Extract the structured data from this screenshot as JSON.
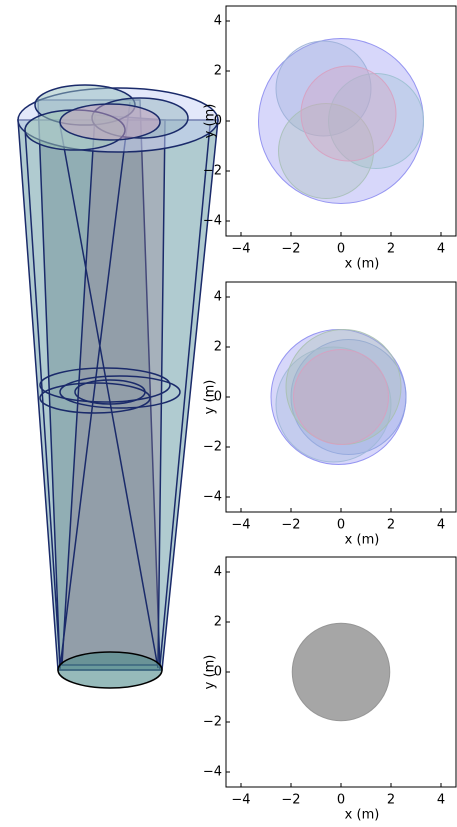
{
  "chart_data": [
    {
      "type": "scatter",
      "xlabel": "x (m)",
      "ylabel": "y (m)",
      "xlim": [
        -4.6,
        4.6
      ],
      "ylim": [
        -4.6,
        4.6
      ],
      "xticks": [
        {
          "value": -4,
          "label": "−4"
        },
        {
          "value": -2,
          "label": "−2"
        },
        0,
        2,
        4
      ],
      "yticks": [
        {
          "value": -4,
          "label": "−4"
        },
        {
          "value": -2,
          "label": "−2"
        },
        0,
        2,
        4
      ],
      "x": [
        0,
        -0.7,
        1.4,
        -0.6,
        0.3
      ],
      "y": [
        0,
        1.3,
        0,
        -1.2,
        0.3
      ],
      "r": [
        3.3,
        1.9,
        1.9,
        1.9,
        1.9
      ],
      "colors": [
        "#8c8cf0",
        "#9cb0d8",
        "#9cc0d0",
        "#a8c0b8",
        "#d8a0c0"
      ]
    },
    {
      "type": "scatter",
      "xlabel": "x (m)",
      "ylabel": "y (m)",
      "xlim": [
        -4.6,
        4.6
      ],
      "ylim": [
        -4.6,
        4.6
      ],
      "xticks": [
        {
          "value": -4,
          "label": "−4"
        },
        {
          "value": -2,
          "label": "−2"
        },
        0,
        2,
        4
      ],
      "yticks": [
        {
          "value": -4,
          "label": "−4"
        },
        {
          "value": -2,
          "label": "−2"
        },
        0,
        2,
        4
      ],
      "x": [
        -0.1,
        0.3,
        -0.3,
        0.1,
        0
      ],
      "y": [
        0,
        0,
        -0.3,
        0.4,
        0
      ],
      "r": [
        2.7,
        2.3,
        2.3,
        2.3,
        1.9
      ],
      "colors": [
        "#8c8cf0",
        "#8ca0e0",
        "#a0b8d8",
        "#a8c0b0",
        "#d8a0c0"
      ]
    },
    {
      "type": "scatter",
      "xlabel": "x (m)",
      "ylabel": "y (m)",
      "xlim": [
        -4.6,
        4.6
      ],
      "ylim": [
        -4.6,
        4.6
      ],
      "xticks": [
        {
          "value": -4,
          "label": "−4"
        },
        {
          "value": -2,
          "label": "−2"
        },
        0,
        2,
        4
      ],
      "yticks": [
        {
          "value": -4,
          "label": "−4"
        },
        {
          "value": -2,
          "label": "−2"
        },
        0,
        2,
        4
      ],
      "x": [
        0
      ],
      "y": [
        0
      ],
      "r": [
        1.95
      ],
      "colors": [
        "#909090"
      ]
    }
  ]
}
